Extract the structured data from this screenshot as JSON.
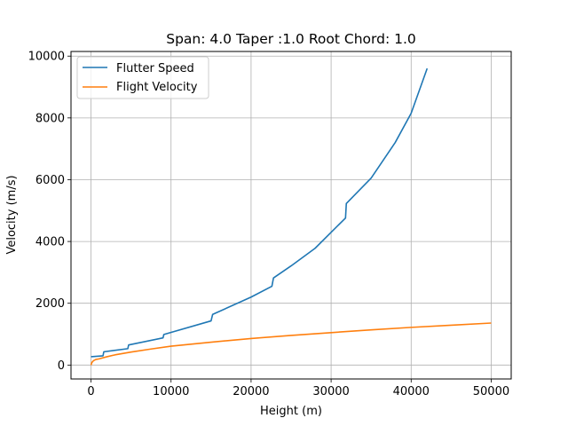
{
  "chart_data": {
    "type": "line",
    "title": "Span: 4.0 Taper :1.0 Root Chord: 1.0",
    "xlabel": "Height (m)",
    "ylabel": "Velocity (m/s)",
    "xlim": [
      -2500,
      52500
    ],
    "ylim": [
      -450,
      10150
    ],
    "xticks": [
      0,
      10000,
      20000,
      30000,
      40000,
      50000
    ],
    "xtick_labels": [
      "0",
      "10000",
      "20000",
      "30000",
      "40000",
      "50000"
    ],
    "yticks": [
      0,
      2000,
      4000,
      6000,
      8000,
      10000
    ],
    "ytick_labels": [
      "0",
      "2000",
      "4000",
      "6000",
      "8000",
      "10000"
    ],
    "grid": true,
    "legend": "upper-left",
    "series": [
      {
        "name": "Flutter Speed",
        "color": "#1f77b4",
        "x": [
          0,
          1500,
          1600,
          4600,
          4700,
          9000,
          9100,
          15000,
          15200,
          20000,
          22600,
          22800,
          25000,
          28000,
          31800,
          31900,
          35000,
          38000,
          40000,
          42000
        ],
        "y": [
          270,
          300,
          430,
          530,
          650,
          880,
          990,
          1430,
          1640,
          2200,
          2550,
          2820,
          3210,
          3780,
          4760,
          5230,
          6050,
          7200,
          8150,
          9600
        ]
      },
      {
        "name": "Flight Velocity",
        "color": "#ff7f0e",
        "x": [
          0,
          100,
          300,
          600,
          1000,
          2000,
          3000,
          5000,
          7500,
          10000,
          15000,
          20000,
          25000,
          30000,
          35000,
          40000,
          45000,
          50000
        ],
        "y": [
          0,
          80,
          140,
          180,
          200,
          270,
          330,
          420,
          520,
          610,
          740,
          860,
          960,
          1050,
          1140,
          1220,
          1290,
          1360
        ]
      }
    ]
  }
}
